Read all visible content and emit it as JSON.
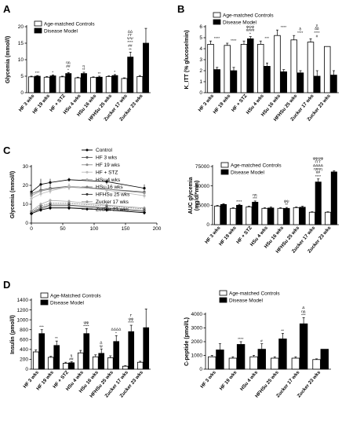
{
  "chart_data": [
    {
      "panel": "A",
      "type": "bar",
      "ylabel": "Glycemia (mmol/l)",
      "ylim": [
        0,
        20
      ],
      "yticks": [
        0,
        5,
        10,
        15,
        20
      ],
      "categories": [
        "HF 3 wks",
        "HF 19 wks",
        "HF + STZ",
        "HSu 4 wks",
        "HSu 16 wks",
        "HFHSu 25 wks",
        "Zucker 17 wks",
        "Zucker 23 wks"
      ],
      "legend": [
        "Age-matched Controls",
        "Disease Model"
      ],
      "series": [
        {
          "name": "Age-matched Controls",
          "color": "#ffffff",
          "values": [
            4.8,
            4.7,
            4.8,
            4.5,
            4.6,
            4.9,
            4.3,
            4.9
          ],
          "errors": [
            0.2,
            0.2,
            0.2,
            0.2,
            0.2,
            0.2,
            0.2,
            0.3
          ]
        },
        {
          "name": "Disease Model",
          "color": "#000000",
          "values": [
            5.0,
            5.1,
            5.8,
            5.8,
            4.7,
            5.2,
            10.8,
            15.0
          ],
          "errors": [
            0.2,
            0.3,
            0.3,
            0.4,
            0.3,
            0.3,
            1.5,
            4.5
          ]
        }
      ],
      "annotations": [
        "***",
        "*",
        "ηη\n##\n*",
        "η\n**",
        "**",
        "*",
        "ΔΔ\nΓΓ\nΨΨ\n****\n##\n**",
        ""
      ]
    },
    {
      "panel": "B",
      "type": "bar",
      "ylabel": "K_ITT (% glucose/min)",
      "ylim": [
        0,
        6
      ],
      "yticks": [
        0,
        1,
        2,
        3,
        4,
        5,
        6
      ],
      "categories": [
        "HF 3 wks",
        "HF 19 wks",
        "HF + STZ",
        "HSu 4 wks",
        "HSu 16 wks",
        "HFHSu 25 wks",
        "Zucker 17 wks",
        "Zucker 23 wks"
      ],
      "legend": [
        "Age-matched Controls",
        "Disease Model"
      ],
      "series": [
        {
          "name": "Age-matched Controls",
          "color": "#ffffff",
          "values": [
            4.4,
            4.3,
            4.4,
            4.4,
            5.2,
            4.8,
            4.6,
            4.2
          ],
          "errors": [
            0.3,
            0.2,
            0.3,
            0.3,
            0.5,
            0.4,
            0.3,
            0.0
          ]
        },
        {
          "name": "Disease Model",
          "color": "#000000",
          "values": [
            2.1,
            2.0,
            4.9,
            2.4,
            1.9,
            1.8,
            1.5,
            1.6
          ],
          "errors": [
            0.2,
            0.3,
            0.2,
            0.3,
            0.2,
            0.2,
            0.5,
            0.4
          ]
        }
      ],
      "annotations": [
        "****",
        "****",
        "ψψψ\n####\n*",
        "***",
        "****",
        "δ\n****",
        "γ\nδδ\n****\n#",
        ""
      ]
    },
    {
      "panel": "C",
      "type": "line",
      "xlabel": "",
      "ylabel": "Glycemia (mmol/l)",
      "xlim": [
        0,
        200
      ],
      "ylim": [
        0,
        30
      ],
      "xticks": [
        0,
        50,
        100,
        150,
        200
      ],
      "yticks": [
        0,
        10,
        20,
        30
      ],
      "x": [
        0,
        15,
        30,
        60,
        120,
        180
      ],
      "series": [
        {
          "name": "Control",
          "values": [
            16.5,
            20.5,
            21.5,
            23.0,
            22.0,
            18.5
          ],
          "errors": [
            1.5,
            3.0,
            2.0,
            1.0,
            1.5,
            2.0
          ],
          "color": "#000000",
          "marker": "circle",
          "dash": ""
        },
        {
          "name": "HF 3 wks",
          "values": [
            15.5,
            17.5,
            18.5,
            19.5,
            18.0,
            16.5
          ],
          "errors": [
            1.0,
            2.0,
            2.5,
            1.5,
            1.5,
            1.5
          ],
          "color": "#555555",
          "marker": "circle",
          "dash": ""
        },
        {
          "name": "HF 19 wks",
          "values": [
            14.5,
            17.0,
            18.0,
            19.0,
            18.0,
            16.0
          ],
          "errors": [
            1.0,
            1.5,
            1.5,
            1.5,
            1.5,
            1.5
          ],
          "color": "#888888",
          "marker": "circle",
          "dash": ""
        },
        {
          "name": "HF + STZ",
          "values": [
            13.0,
            15.5,
            17.0,
            19.5,
            17.5,
            14.5
          ],
          "errors": [
            1.0,
            1.5,
            1.5,
            1.5,
            1.5,
            1.5
          ],
          "color": "#bbbbbb",
          "marker": "circle",
          "dash": ""
        },
        {
          "name": "HSu 4 wks",
          "values": [
            6.5,
            10.0,
            12.0,
            11.5,
            9.5,
            8.0
          ],
          "errors": [
            0.8,
            1.0,
            1.0,
            1.0,
            1.0,
            1.0
          ],
          "color": "#aaaaaa",
          "marker": "circle",
          "dash": ""
        },
        {
          "name": "HSu 16 wks",
          "values": [
            6.0,
            9.0,
            10.5,
            10.5,
            9.0,
            7.5
          ],
          "errors": [
            0.8,
            1.0,
            1.0,
            1.0,
            1.0,
            1.0
          ],
          "color": "#777777",
          "marker": "circle",
          "dash": "2,1"
        },
        {
          "name": "HFHSu 25 wks",
          "values": [
            5.5,
            8.0,
            9.5,
            9.5,
            8.0,
            6.5
          ],
          "errors": [
            0.5,
            1.0,
            1.0,
            1.0,
            1.0,
            1.0
          ],
          "color": "#333333",
          "marker": "circle",
          "dash": ""
        },
        {
          "name": "Zucker 17 wks",
          "values": [
            5.5,
            7.5,
            8.5,
            8.5,
            7.5,
            6.0
          ],
          "errors": [
            0.5,
            1.0,
            1.0,
            1.0,
            1.0,
            1.0
          ],
          "color": "#999999",
          "marker": "circle",
          "dash": ""
        },
        {
          "name": "Zucker 23 wks",
          "values": [
            5.0,
            7.0,
            8.0,
            8.0,
            7.0,
            5.5
          ],
          "errors": [
            0.5,
            1.0,
            1.0,
            1.0,
            1.0,
            1.0
          ],
          "color": "#000000",
          "marker": "diamond",
          "dash": ""
        }
      ]
    },
    {
      "panel": "C2",
      "type": "bar",
      "ylabel": "AUC glycemia\n(mg/dl*min)",
      "ylim": [
        0,
        75000
      ],
      "yticks": [
        0,
        25000,
        50000,
        75000
      ],
      "categories": [
        "HF 3 wks",
        "HF 19 wks",
        "HF + STZ",
        "HSu 4 wks",
        "HSu 16 wks",
        "HFHSu 25 wks",
        "Zucker 17 wks",
        "Zucker 23 wks"
      ],
      "legend": [
        "Age-matched Controls",
        "Disease Model"
      ],
      "series": [
        {
          "name": "Age-matched Controls",
          "color": "#ffffff",
          "values": [
            24000,
            21000,
            23000,
            21000,
            21000,
            22000,
            16000,
            16000
          ],
          "errors": [
            800,
            800,
            800,
            800,
            800,
            800,
            600,
            600
          ]
        },
        {
          "name": "Disease Model",
          "color": "#000000",
          "values": [
            26000,
            25000,
            29000,
            21500,
            21000,
            22500,
            55000,
            68000
          ],
          "errors": [
            1000,
            1200,
            1500,
            1200,
            1200,
            1200,
            4000,
            1500
          ]
        }
      ],
      "annotations": [
        "",
        "****",
        "ηη\n***",
        "",
        "ψψ\n**",
        "",
        "ψψψψ\nΓΓΓ\nΔΔΔΔ\nηηηη\n##\n****",
        ""
      ]
    },
    {
      "panel": "D",
      "type": "bar",
      "ylabel": "Insulin (pmol/l)",
      "ylim": [
        0,
        1400
      ],
      "yticks": [
        0,
        200,
        400,
        600,
        800,
        1000,
        1200,
        1400
      ],
      "categories": [
        "HF 3 wks",
        "HF 19 wks",
        "HF + STZ",
        "HSu 4 wks",
        "HSu 16 wks",
        "HFHSu 25 wks",
        "Zucker 17 wks",
        "Zucker 23 wks"
      ],
      "legend": [
        "Age-Matched Controls",
        "Disease Model"
      ],
      "series": [
        {
          "name": "Age-Matched Controls",
          "color": "#ffffff",
          "values": [
            350,
            240,
            120,
            330,
            250,
            230,
            60,
            140
          ],
          "errors": [
            40,
            20,
            20,
            50,
            40,
            40,
            10,
            20
          ]
        },
        {
          "name": "Disease Model",
          "color": "#000000",
          "values": [
            720,
            480,
            130,
            720,
            320,
            560,
            760,
            840
          ],
          "errors": [
            80,
            90,
            20,
            100,
            90,
            120,
            130,
            380
          ]
        }
      ],
      "annotations": [
        "***",
        "**",
        "η\n##",
        "ψψ\n****",
        "Δ\nψ",
        "ΔΔΔΔ\n*",
        "Γ\nψψ\n****",
        ""
      ]
    },
    {
      "panel": "D2",
      "type": "bar",
      "ylabel": "C-peptide (pmol/L)",
      "ylim": [
        0,
        4000
      ],
      "yticks": [
        0,
        1000,
        2000,
        3000,
        4000
      ],
      "categories": [
        "HF 3 wks",
        "HF 19 wks",
        "HSu 4 wks",
        "HFHSu 25 wks",
        "Zucker 17 wks",
        "Zucker 23 wks"
      ],
      "legend": [
        "Age-matched Controls",
        "Disease Model"
      ],
      "series": [
        {
          "name": "Age-matched Controls",
          "color": "#ffffff",
          "values": [
            900,
            800,
            900,
            800,
            800,
            700
          ],
          "errors": [
            100,
            100,
            100,
            100,
            100,
            50
          ]
        },
        {
          "name": "Disease Model",
          "color": "#000000",
          "values": [
            1400,
            1800,
            1450,
            2200,
            3300,
            1450
          ],
          "errors": [
            450,
            200,
            400,
            400,
            450,
            0
          ]
        }
      ],
      "annotations": [
        "",
        "****",
        "#",
        "**",
        "Δ\nηη\n***",
        ""
      ]
    }
  ],
  "panel_labels": [
    "A",
    "B",
    "C",
    "D"
  ]
}
